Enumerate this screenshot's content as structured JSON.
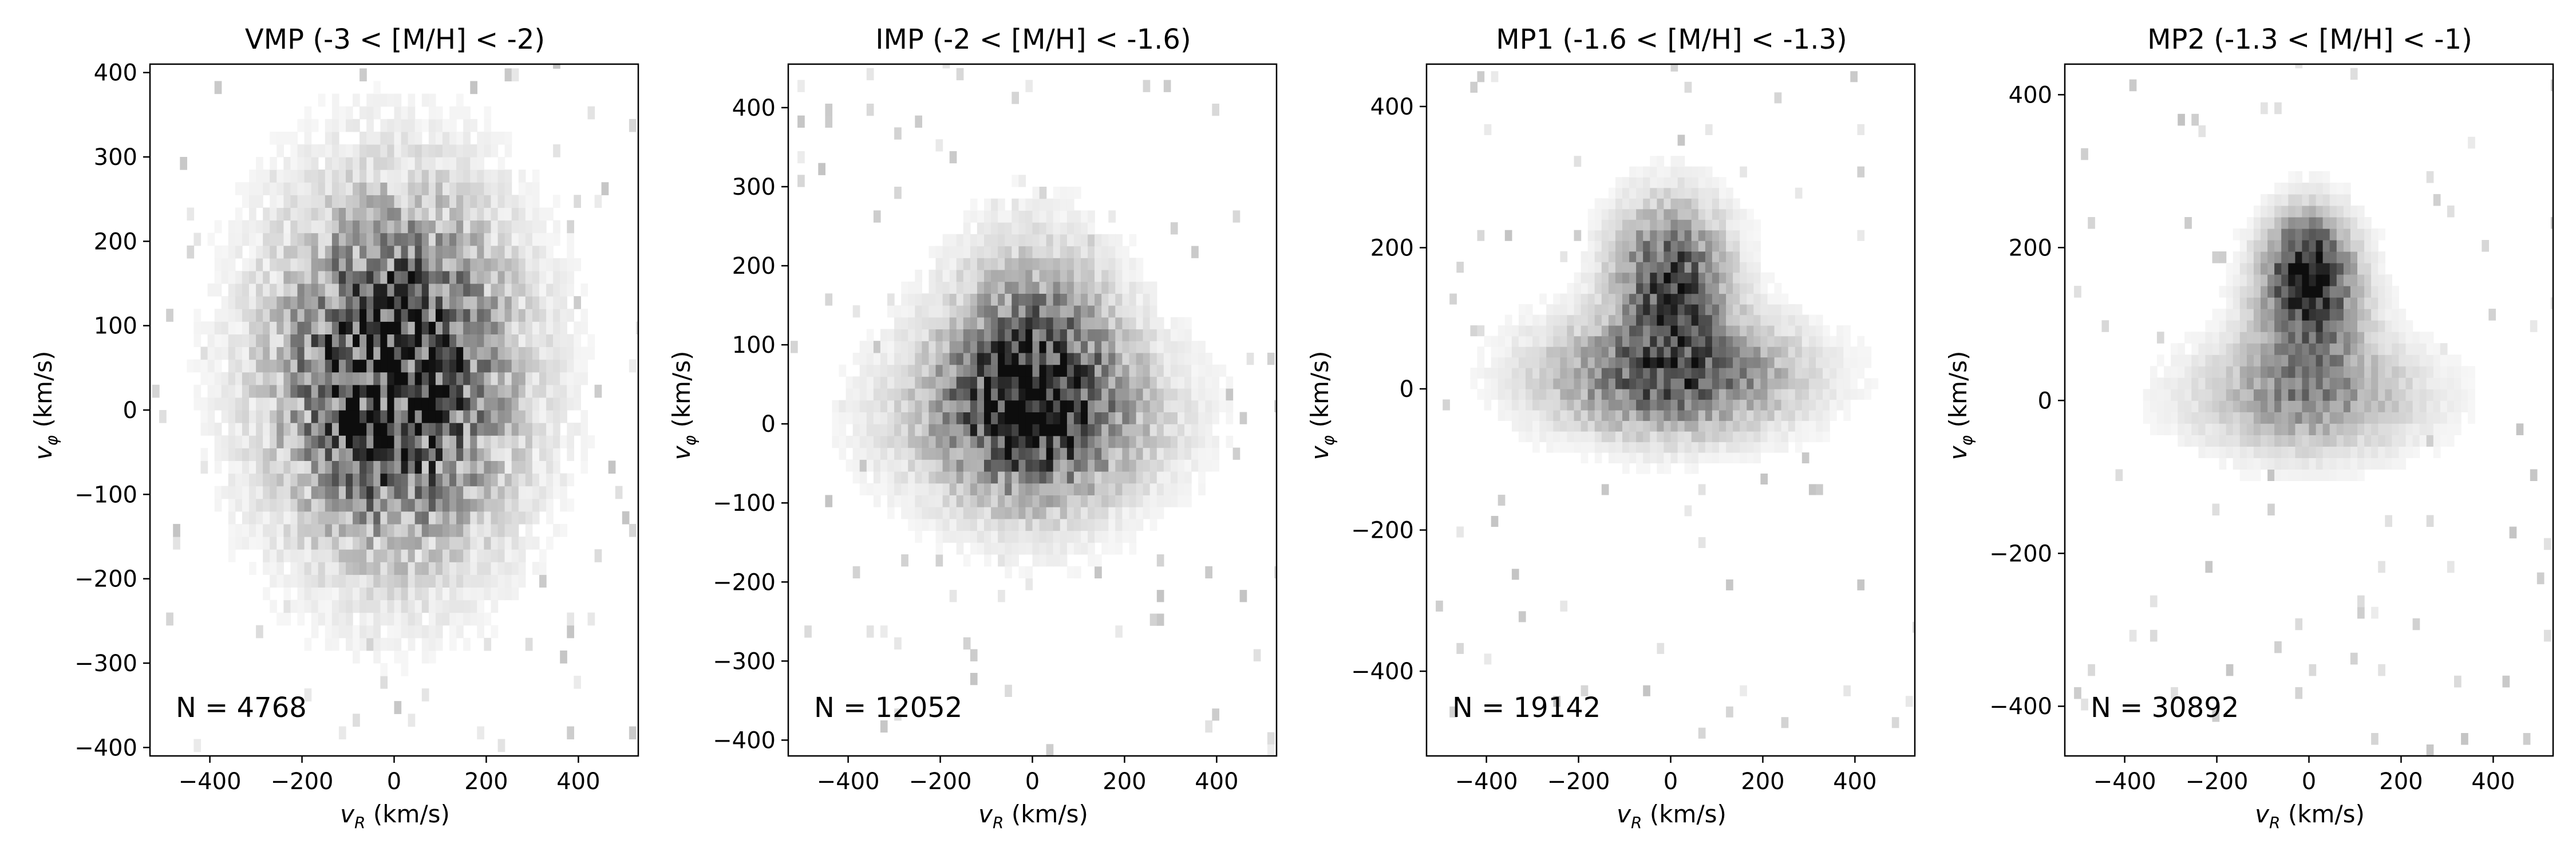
{
  "figure": {
    "description_colors": {
      "foreground": "#000000",
      "background": "#ffffff",
      "colormap": "Greys"
    }
  },
  "chart_data": [
    {
      "type": "heatmap",
      "title": "VMP (-3 < [M/H] < -2)",
      "xlabel": "vR (km/s)",
      "ylabel": "vφ (km/s)",
      "xlim": [
        -530,
        530
      ],
      "ylim": [
        -410,
        410
      ],
      "xticks": [
        -400,
        -200,
        0,
        200,
        400
      ],
      "yticks": [
        -400,
        -300,
        -200,
        -100,
        0,
        100,
        200,
        300,
        400
      ],
      "xtick_labels": [
        "−400",
        "−200",
        "0",
        "200",
        "400"
      ],
      "ytick_labels": [
        "−400",
        "−300",
        "−200",
        "−100",
        "0",
        "100",
        "200",
        "300",
        "400"
      ],
      "annotation": "N = 4768",
      "N": 4768,
      "components": [
        {
          "center": [
            0,
            40
          ],
          "sigma": [
            150,
            120
          ],
          "weight": 1.0
        }
      ],
      "noise": 0.75,
      "bin_size": 15
    },
    {
      "type": "heatmap",
      "title": "IMP (-2 < [M/H] < -1.6)",
      "xlabel": "vR (km/s)",
      "ylabel": "vφ (km/s)",
      "xlim": [
        -530,
        530
      ],
      "ylim": [
        -420,
        455
      ],
      "xticks": [
        -400,
        -200,
        0,
        200,
        400
      ],
      "yticks": [
        -400,
        -300,
        -200,
        -100,
        0,
        100,
        200,
        300,
        400
      ],
      "xtick_labels": [
        "−400",
        "−200",
        "0",
        "200",
        "400"
      ],
      "ytick_labels": [
        "−400",
        "−300",
        "−200",
        "−100",
        "0",
        "100",
        "200",
        "300",
        "400"
      ],
      "annotation": "N = 12052",
      "N": 12052,
      "components": [
        {
          "center": [
            0,
            60
          ],
          "sigma": [
            110,
            90
          ],
          "weight": 0.7
        },
        {
          "center": [
            0,
            10
          ],
          "sigma": [
            170,
            65
          ],
          "weight": 0.5
        }
      ],
      "noise": 0.55,
      "bin_size": 15
    },
    {
      "type": "heatmap",
      "title": "MP1 (-1.6 < [M/H] < -1.3)",
      "xlabel": "vR (km/s)",
      "ylabel": "vφ (km/s)",
      "xlim": [
        -530,
        530
      ],
      "ylim": [
        -520,
        460
      ],
      "xticks": [
        -400,
        -200,
        0,
        200,
        400
      ],
      "yticks": [
        -400,
        -200,
        0,
        200,
        400
      ],
      "xtick_labels": [
        "−400",
        "−200",
        "0",
        "200",
        "400"
      ],
      "ytick_labels": [
        "−400",
        "−200",
        "0",
        "200",
        "400"
      ],
      "annotation": "N = 19142",
      "N": 19142,
      "components": [
        {
          "center": [
            0,
            150
          ],
          "sigma": [
            75,
            65
          ],
          "weight": 0.8
        },
        {
          "center": [
            0,
            20
          ],
          "sigma": [
            160,
            50
          ],
          "weight": 0.7
        }
      ],
      "noise": 0.45,
      "bin_size": 15
    },
    {
      "type": "heatmap",
      "title": "MP2 (-1.3 < [M/H] < -1)",
      "xlabel": "vR (km/s)",
      "ylabel": "vφ (km/s)",
      "xlim": [
        -530,
        530
      ],
      "ylim": [
        -465,
        440
      ],
      "xticks": [
        -400,
        -200,
        0,
        200,
        400
      ],
      "yticks": [
        -400,
        -200,
        0,
        200,
        400
      ],
      "xtick_labels": [
        "−400",
        "−200",
        "0",
        "200",
        "400"
      ],
      "ytick_labels": [
        "−400",
        "−200",
        "0",
        "200",
        "400"
      ],
      "annotation": "N = 30892",
      "N": 30892,
      "components": [
        {
          "center": [
            0,
            170
          ],
          "sigma": [
            55,
            45
          ],
          "weight": 1.0
        },
        {
          "center": [
            0,
            90
          ],
          "sigma": [
            80,
            60
          ],
          "weight": 0.4
        },
        {
          "center": [
            0,
            5
          ],
          "sigma": [
            150,
            45
          ],
          "weight": 0.35
        }
      ],
      "noise": 0.35,
      "bin_size": 15
    }
  ]
}
